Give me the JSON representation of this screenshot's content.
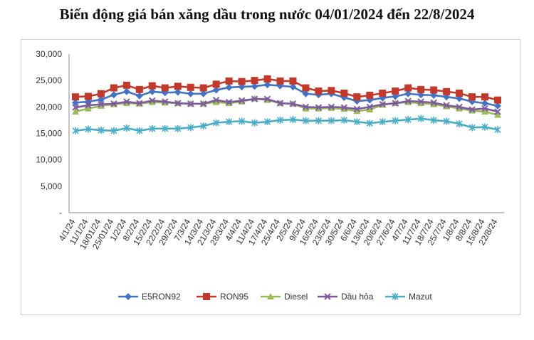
{
  "title": "Biến động giá bán xăng dầu trong nước 04/01/2024 đến 22/8/2024",
  "chart_data": {
    "type": "line",
    "categories": [
      "4/1/24",
      "11/1/24",
      "18/01/24",
      "25/01/24",
      "1/2/24",
      "8/2/24",
      "15/2/24",
      "22/2/24",
      "29/2/24",
      "7/3/24",
      "14/3/24",
      "21/3/24",
      "28/3/24",
      "4/4/24",
      "11/4/24",
      "17/4/24",
      "25/4/24",
      "2/5/24",
      "9/5/24",
      "16/5/24",
      "23/5/24",
      "30/5/24",
      "6/6/24",
      "13/6/24",
      "20/6/24",
      "27/6/24",
      "4/7/24",
      "11/7/24",
      "18/7/24",
      "25/7/24",
      "1/8/24",
      "8/8/24",
      "15/8/24",
      "22/8/24"
    ],
    "yticks": [
      "-",
      "5,000",
      "10,000",
      "15,000",
      "20,000",
      "25,000",
      "30,000"
    ],
    "ylim": [
      0,
      30000
    ],
    "grid": false,
    "legend_position": "bottom",
    "series": [
      {
        "name": "E5RON92",
        "color": "#4472c4",
        "marker": "diamond",
        "values": [
          20800,
          21000,
          21400,
          22300,
          22900,
          22100,
          22900,
          22700,
          22800,
          22500,
          22500,
          23200,
          23700,
          23800,
          23900,
          24200,
          24000,
          23800,
          22500,
          22300,
          22500,
          21800,
          21100,
          21300,
          21700,
          22000,
          22500,
          22300,
          22200,
          21900,
          21600,
          21000,
          20700,
          20200
        ]
      },
      {
        "name": "RON95",
        "color": "#c0392b",
        "marker": "square",
        "values": [
          21900,
          22000,
          22500,
          23600,
          24100,
          23300,
          24000,
          23600,
          23900,
          23700,
          23600,
          24300,
          24900,
          24800,
          25000,
          25300,
          24900,
          24900,
          23600,
          23000,
          23100,
          22600,
          21900,
          22200,
          22600,
          23000,
          23600,
          23300,
          23200,
          22900,
          22600,
          21900,
          21900,
          21300
        ]
      },
      {
        "name": "Diesel",
        "color": "#9bbb59",
        "marker": "triangle",
        "values": [
          19100,
          19700,
          20200,
          20500,
          20700,
          20600,
          20900,
          20800,
          20700,
          20600,
          20600,
          20900,
          20700,
          21000,
          21600,
          21300,
          20700,
          20600,
          19700,
          19700,
          19800,
          19600,
          19200,
          19500,
          20400,
          20700,
          20900,
          20700,
          20500,
          20100,
          19700,
          19300,
          19100,
          18500
        ]
      },
      {
        "name": "Dầu hỏa",
        "color": "#7d5a9e",
        "marker": "x",
        "values": [
          19900,
          20300,
          20500,
          20600,
          21000,
          20700,
          21200,
          21000,
          20700,
          20600,
          20600,
          21300,
          20900,
          21200,
          21500,
          21500,
          20700,
          20600,
          20000,
          19900,
          20000,
          19900,
          19600,
          20000,
          20500,
          20700,
          21100,
          21000,
          20800,
          20300,
          20000,
          19500,
          19700,
          19100
        ]
      },
      {
        "name": "Mazut",
        "color": "#4bacc6",
        "marker": "asterisk",
        "values": [
          15500,
          15800,
          15600,
          15500,
          16000,
          15500,
          15900,
          15900,
          15900,
          16100,
          16400,
          17000,
          17200,
          17300,
          17000,
          17200,
          17500,
          17600,
          17400,
          17400,
          17400,
          17500,
          17200,
          16900,
          17200,
          17400,
          17600,
          17800,
          17500,
          17300,
          16800,
          16100,
          16200,
          15700
        ]
      }
    ]
  }
}
